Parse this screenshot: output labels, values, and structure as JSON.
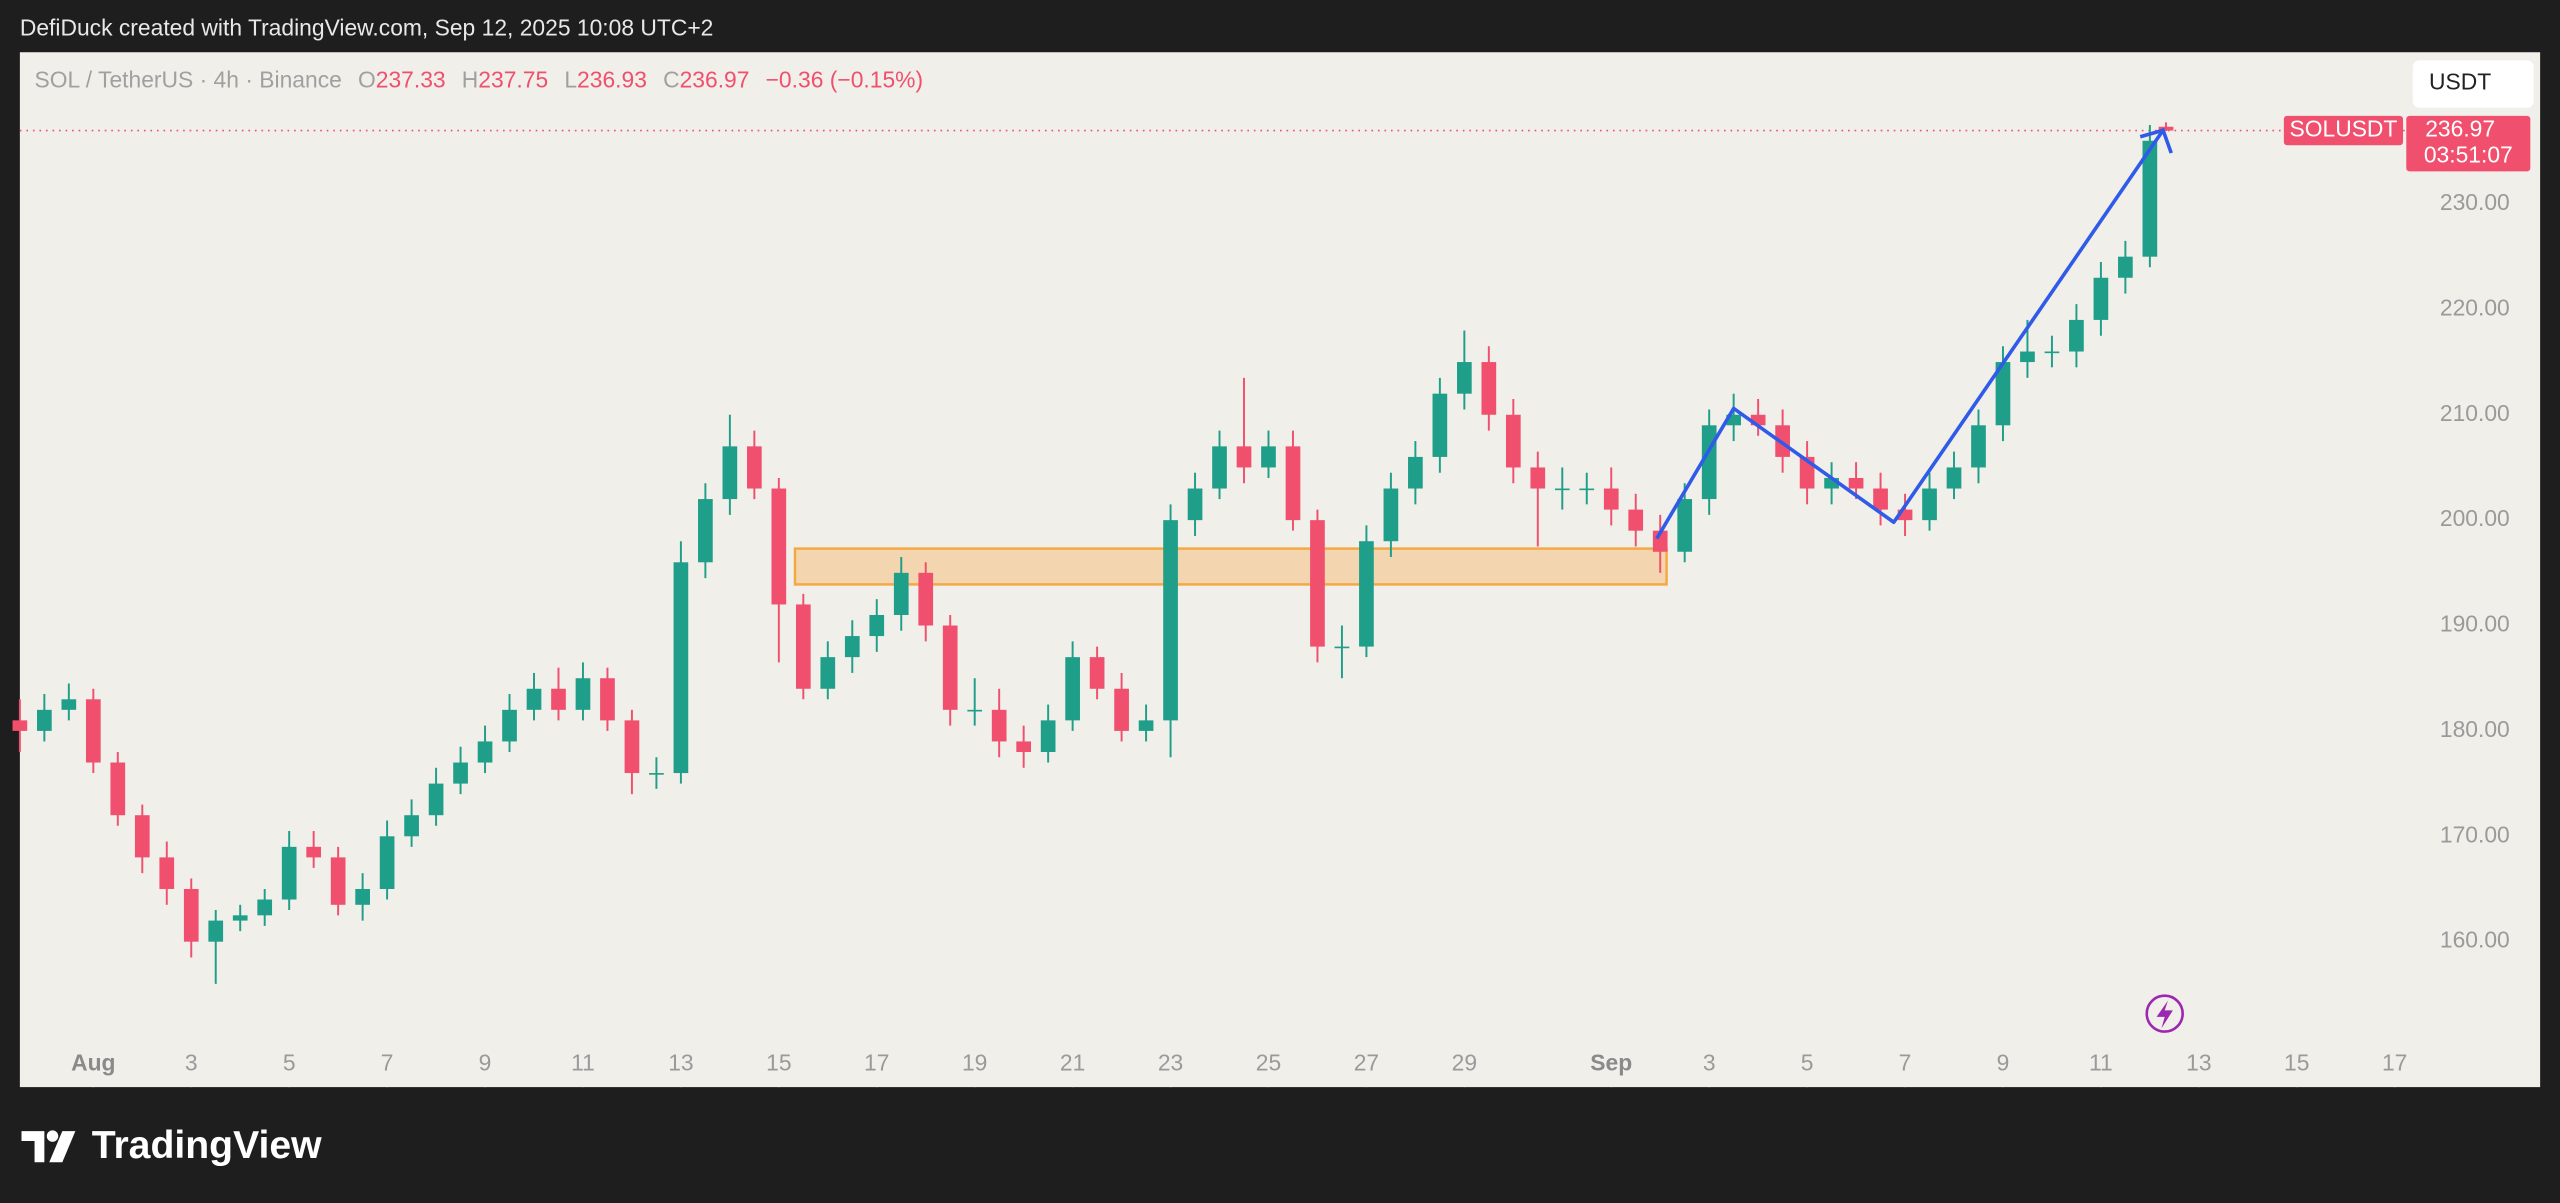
{
  "top_bar_text": "DefiDuck created with TradingView.com, Sep 12, 2025 10:08 UTC+2",
  "footer_brand": "TradingView",
  "chart_data": {
    "type": "candlestick",
    "symbol_label": "SOL / TetherUS · 4h · Binance",
    "legend_labels": {
      "open": "O",
      "high": "H",
      "low": "L",
      "close": "C"
    },
    "change": "−0.36 (−0.15%)",
    "currency": "USDT",
    "price_tag_symbol": "SOLUSDT",
    "countdown": "03:51:07",
    "up_color": "#1f9e89",
    "down_color": "#f0506e",
    "x": [
      -1.5,
      -1,
      -0.5,
      0,
      0.5,
      1,
      1.5,
      2,
      2.5,
      3,
      3.5,
      4,
      4.5,
      5,
      5.5,
      6,
      6.5,
      7,
      7.5,
      8,
      8.5,
      9,
      9.5,
      10,
      10.5,
      11,
      11.5,
      12,
      12.5,
      13,
      13.5,
      14,
      14.5,
      15,
      15.5,
      16,
      16.5,
      17,
      17.5,
      18,
      18.5,
      19,
      19.5,
      20,
      20.5,
      21,
      21.5,
      22,
      22.5,
      23,
      23.5,
      24,
      24.5,
      25,
      25.5,
      26,
      26.5,
      27,
      27.5,
      28,
      28.5,
      29,
      29.5,
      30,
      30.5,
      31,
      31.5,
      32,
      32.5,
      33,
      33.5,
      34,
      34.5,
      35,
      35.5,
      36,
      36.5,
      37,
      37.5,
      38,
      38.5,
      39,
      39.5,
      40,
      40.5,
      41,
      41.5,
      42,
      42.33
    ],
    "open": [
      181,
      180,
      182,
      183,
      177,
      172,
      168,
      165,
      160,
      162,
      162.5,
      164,
      169,
      168,
      163.5,
      165,
      170,
      172,
      175,
      177,
      179,
      182,
      184,
      182,
      185,
      181,
      176,
      176,
      196,
      202,
      207,
      203,
      192,
      184,
      187,
      189,
      191,
      195,
      190,
      182,
      182,
      179,
      178,
      181,
      187,
      184,
      180,
      181,
      200,
      203,
      207,
      205,
      207,
      200,
      188,
      188,
      198,
      203,
      206,
      212,
      215,
      210,
      205,
      203,
      203,
      203,
      201,
      199,
      197,
      202,
      209,
      210,
      209,
      206,
      203,
      204,
      203,
      201,
      200,
      203,
      205,
      209,
      215,
      216,
      216,
      219,
      223,
      225,
      237.33
    ],
    "high": [
      183,
      183.5,
      184.5,
      184,
      178,
      173,
      169.5,
      166,
      163,
      163.5,
      165,
      170.5,
      170.5,
      169,
      166.5,
      171.5,
      173.5,
      176.5,
      178.5,
      180.5,
      183.5,
      185.5,
      186,
      186.5,
      186,
      182,
      177.5,
      198,
      203.5,
      210,
      208.5,
      204,
      193,
      188.5,
      190.5,
      192.5,
      196.5,
      196,
      191,
      185,
      184,
      180.5,
      182.5,
      188.5,
      188,
      185.5,
      182.5,
      201.5,
      204.5,
      208.5,
      213.5,
      208.5,
      208.5,
      201,
      190,
      199.5,
      204.5,
      207.5,
      213.5,
      218,
      216.5,
      211.5,
      206.5,
      205,
      204.5,
      205,
      202.5,
      200.5,
      203.5,
      210.5,
      212,
      211.5,
      210.5,
      207.5,
      205.5,
      205.5,
      204.5,
      202.5,
      204.5,
      206.5,
      210.5,
      216.5,
      219,
      217.5,
      220.5,
      224.5,
      226.5,
      237.5,
      237.75
    ],
    "low": [
      178,
      179,
      181,
      176,
      171,
      166.5,
      163.5,
      158.5,
      156,
      161,
      161.5,
      163,
      167,
      162.5,
      162,
      164,
      169,
      171,
      174,
      176,
      178,
      181,
      181,
      181,
      180,
      174,
      174.5,
      175,
      194.5,
      200.5,
      202,
      186.5,
      183,
      183,
      185.5,
      187.5,
      189.5,
      188.5,
      180.5,
      180.5,
      177.5,
      176.5,
      177,
      180,
      183,
      179,
      179,
      177.5,
      198.5,
      202,
      203.5,
      204,
      199,
      186.5,
      185,
      187,
      196.5,
      201.5,
      204.5,
      210.5,
      208.5,
      203.5,
      197.5,
      201,
      201.5,
      199.5,
      197.5,
      195,
      196,
      200.5,
      207.5,
      208,
      204.5,
      201.5,
      201.5,
      202,
      199.5,
      198.5,
      199,
      202,
      203.5,
      207.5,
      213.5,
      214.5,
      214.5,
      217.5,
      221.5,
      224,
      236.93
    ],
    "close": [
      180,
      182,
      183,
      177,
      172,
      168,
      165,
      160,
      162,
      162.5,
      164,
      169,
      168,
      163.5,
      165,
      170,
      172,
      175,
      177,
      179,
      182,
      184,
      182,
      185,
      181,
      176,
      176,
      196,
      202,
      207,
      203,
      192,
      184,
      187,
      189,
      191,
      195,
      190,
      182,
      182,
      179,
      178,
      181,
      187,
      184,
      180,
      181,
      200,
      203,
      207,
      205,
      207,
      200,
      188,
      188,
      198,
      203,
      206,
      212,
      215,
      210,
      205,
      203,
      203,
      203,
      201,
      199,
      197,
      202,
      209,
      210,
      209,
      206,
      203,
      204,
      203,
      201,
      200,
      203,
      205,
      209,
      215,
      216,
      216,
      219,
      223,
      225,
      236,
      236.97
    ],
    "xlim": [
      -1.5,
      47.27
    ],
    "ylim": [
      146.2,
      244.4
    ],
    "xticks": [
      {
        "value": 0,
        "label": "Aug"
      },
      {
        "value": 2,
        "label": "3"
      },
      {
        "value": 4,
        "label": "5"
      },
      {
        "value": 6,
        "label": "7"
      },
      {
        "value": 8,
        "label": "9"
      },
      {
        "value": 10,
        "label": "11"
      },
      {
        "value": 12,
        "label": "13"
      },
      {
        "value": 14,
        "label": "15"
      },
      {
        "value": 16,
        "label": "17"
      },
      {
        "value": 18,
        "label": "19"
      },
      {
        "value": 20,
        "label": "21"
      },
      {
        "value": 22,
        "label": "23"
      },
      {
        "value": 24,
        "label": "25"
      },
      {
        "value": 26,
        "label": "27"
      },
      {
        "value": 28,
        "label": "29"
      },
      {
        "value": 31,
        "label": "Sep"
      },
      {
        "value": 33,
        "label": "3"
      },
      {
        "value": 35,
        "label": "5"
      },
      {
        "value": 37,
        "label": "7"
      },
      {
        "value": 39,
        "label": "9"
      },
      {
        "value": 41,
        "label": "11"
      },
      {
        "value": 43,
        "label": "13"
      },
      {
        "value": 45,
        "label": "15"
      },
      {
        "value": 47,
        "label": "17"
      }
    ],
    "yticks": [
      {
        "value": 160,
        "label": "160.00"
      },
      {
        "value": 170,
        "label": "170.00"
      },
      {
        "value": 180,
        "label": "180.00"
      },
      {
        "value": 190,
        "label": "190.00"
      },
      {
        "value": 200,
        "label": "200.00"
      },
      {
        "value": 210,
        "label": "210.00"
      },
      {
        "value": 220,
        "label": "220.00"
      },
      {
        "value": 230,
        "label": "230.00"
      }
    ],
    "zone": {
      "x": [
        14.33,
        32.13
      ],
      "y": [
        193.9,
        197.3
      ],
      "color": "#f5a742"
    },
    "arrow": {
      "x": [
        31.93,
        33.5,
        36.77,
        42.27
      ],
      "y": [
        198.25,
        210.6,
        199.8,
        237.0
      ],
      "color": "#2f5be8"
    }
  }
}
